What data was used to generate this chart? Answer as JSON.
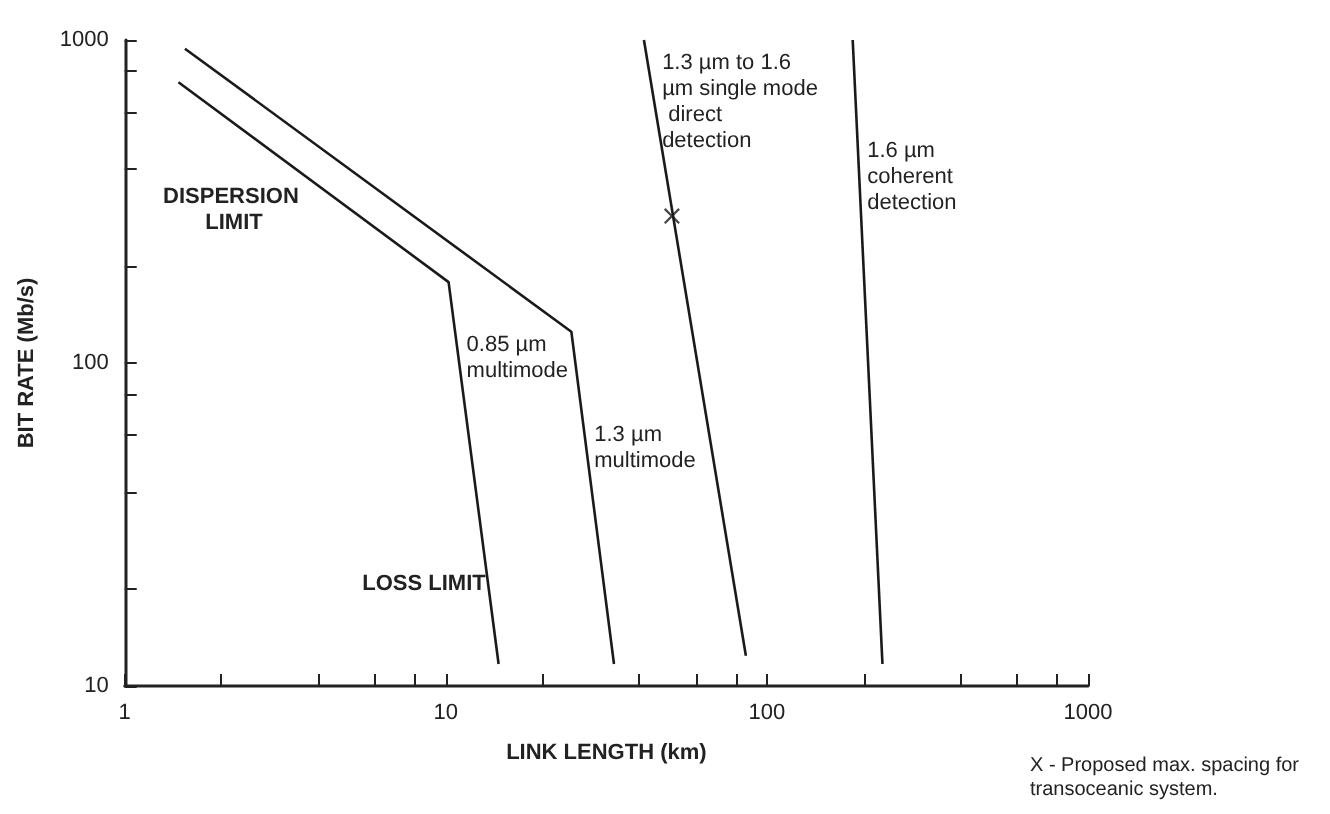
{
  "chart_data": {
    "type": "line",
    "xlabel": "LINK LENGTH (km)",
    "ylabel": "BIT RATE (Mb/s)",
    "log": "xy",
    "xlim": [
      1,
      1000
    ],
    "ylim": [
      10,
      1000
    ],
    "xticks": [
      1,
      {
        "value": 2,
        "label": null
      },
      {
        "value": 4,
        "label": null
      },
      {
        "value": 6,
        "label": null
      },
      {
        "value": 8,
        "label": null
      },
      10,
      {
        "value": 20,
        "label": null
      },
      {
        "value": 40,
        "label": null
      },
      {
        "value": 60,
        "label": null
      },
      {
        "value": 80,
        "label": null
      },
      100,
      {
        "value": 200,
        "label": null
      },
      {
        "value": 400,
        "label": null
      },
      {
        "value": 600,
        "label": null
      },
      {
        "value": 800,
        "label": null
      },
      1000
    ],
    "yticks": [
      10,
      {
        "value": 20,
        "label": null
      },
      {
        "value": 40,
        "label": null
      },
      {
        "value": 60,
        "label": null
      },
      {
        "value": 80,
        "label": null
      },
      100,
      {
        "value": 200,
        "label": null
      },
      {
        "value": 400,
        "label": null
      },
      {
        "value": 600,
        "label": null
      },
      {
        "value": 800,
        "label": null
      },
      1000
    ],
    "marker": "none",
    "line_style": "solid",
    "series": [
      {
        "name": "0.85 µm multimode",
        "color": "#1a1a1a",
        "x": [
          1.47,
          10.2,
          14.6
        ],
        "values": [
          740,
          178,
          11.7
        ]
      },
      {
        "name": "1.3 µm multimode",
        "color": "#1a1a1a",
        "x": [
          1.54,
          24.6,
          33.4
        ],
        "values": [
          940,
          125,
          11.7
        ]
      },
      {
        "name": "1.3 µm to 1.6 µm single mode direct detection",
        "color": "#1a1a1a",
        "x": [
          41.4,
          86
        ],
        "values": [
          1000,
          12.4
        ]
      },
      {
        "name": "1.6 µm coherent detection",
        "color": "#1a1a1a",
        "x": [
          185,
          229
        ],
        "values": [
          1000,
          11.7
        ]
      },
      {
        "type": "scatter",
        "marker": "cross",
        "color": "#1a1a1a",
        "x": [
          50.6
        ],
        "values": [
          285
        ]
      }
    ],
    "annotations": [
      "DISPERSION LIMIT",
      "LOSS LIMIT",
      "X - Proposed max. spacing for transoceanic system."
    ]
  }
}
